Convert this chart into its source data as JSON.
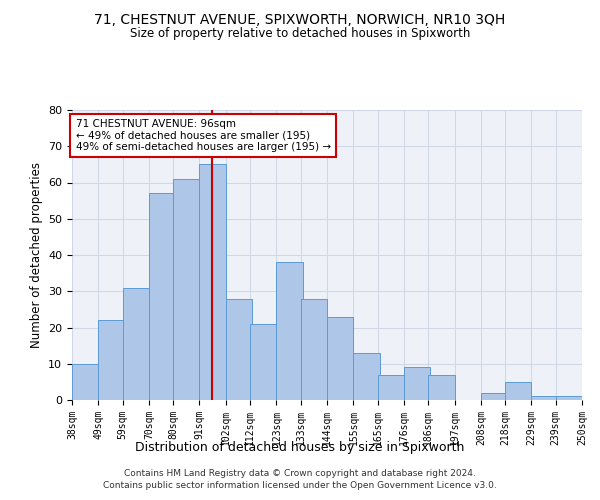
{
  "title1": "71, CHESTNUT AVENUE, SPIXWORTH, NORWICH, NR10 3QH",
  "title2": "Size of property relative to detached houses in Spixworth",
  "xlabel": "Distribution of detached houses by size in Spixworth",
  "ylabel": "Number of detached properties",
  "footer1": "Contains HM Land Registry data © Crown copyright and database right 2024.",
  "footer2": "Contains public sector information licensed under the Open Government Licence v3.0.",
  "annotation_line1": "71 CHESTNUT AVENUE: 96sqm",
  "annotation_line2": "← 49% of detached houses are smaller (195)",
  "annotation_line3": "49% of semi-detached houses are larger (195) →",
  "property_size": 96,
  "bar_left_edges": [
    38,
    49,
    59,
    70,
    80,
    91,
    102,
    112,
    123,
    133,
    144,
    155,
    165,
    176,
    186,
    197,
    208,
    218,
    229,
    239
  ],
  "bar_heights": [
    10,
    22,
    31,
    57,
    61,
    65,
    28,
    21,
    38,
    28,
    23,
    13,
    7,
    9,
    7,
    0,
    2,
    5,
    1,
    1
  ],
  "bin_width": 11,
  "bar_color": "#aec6e8",
  "bar_edge_color": "#5b9bd5",
  "vline_color": "#cc0000",
  "vline_x": 96,
  "annotation_box_color": "#cc0000",
  "grid_color": "#d0d8e8",
  "bg_color": "#eef2f8",
  "ylim": [
    0,
    80
  ],
  "yticks": [
    0,
    10,
    20,
    30,
    40,
    50,
    60,
    70,
    80
  ],
  "xtick_labels": [
    "38sqm",
    "49sqm",
    "59sqm",
    "70sqm",
    "80sqm",
    "91sqm",
    "102sqm",
    "112sqm",
    "123sqm",
    "133sqm",
    "144sqm",
    "155sqm",
    "165sqm",
    "176sqm",
    "186sqm",
    "197sqm",
    "208sqm",
    "218sqm",
    "229sqm",
    "239sqm",
    "250sqm"
  ]
}
